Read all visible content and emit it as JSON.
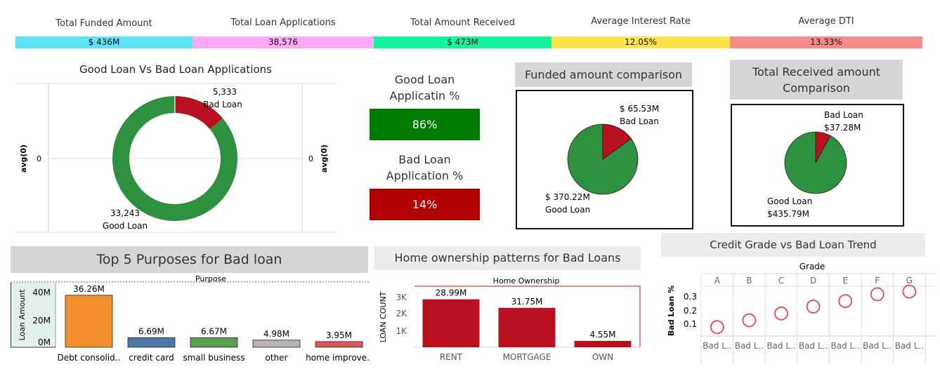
{
  "kpis": [
    {
      "title": "Total Funded Amount",
      "value": "$ 436M",
      "color": "#5ee3f6"
    },
    {
      "title": "Total Loan Applications",
      "value": "38,576",
      "color": "#fdaaf5"
    },
    {
      "title": "Total Amount Received",
      "value": "$ 473M",
      "color": "#12f59e"
    },
    {
      "title": "Average Interest Rate",
      "value": "12.05%",
      "color": "#fde448"
    },
    {
      "title": "Average DTI",
      "value": "13.33%",
      "color": "#f88a8a"
    }
  ],
  "donut": {
    "title": "Good Loan Vs Bad Loan Applications",
    "axis_label": "avg(0)",
    "axis_tick": "0",
    "bad_value": "5,333",
    "bad_label": "Bad Loan",
    "good_value": "33,243",
    "good_label": "Good Loan",
    "good_color": "#2e9140",
    "bad_color": "#b8101f"
  },
  "pct": {
    "good_title_1": "Good Loan",
    "good_title_2": "Applicatin %",
    "good_value": "86%",
    "good_color": "#007a00",
    "bad_title_1": "Bad Loan",
    "bad_title_2": "Application %",
    "bad_value": "14%",
    "bad_color": "#b00000"
  },
  "funded_pie": {
    "title": "Funded amount comparison",
    "bad_value": "$ 65.53M",
    "bad_label": "Bad Loan",
    "good_value": "$ 370.22M",
    "good_label": "Good Loan"
  },
  "received_pie": {
    "title_1": "Total Received amount",
    "title_2": "Comparison",
    "bad_label": "Bad Loan",
    "bad_value": "$37.28M",
    "good_label": "Good Loan",
    "good_value": "$435.79M"
  },
  "purposes": {
    "title": "Top 5 Purposes for Bad loan",
    "column_header": "Purpose",
    "ylabel": "Loan Amount",
    "yticks": [
      "40M",
      "20M",
      "0M"
    ]
  },
  "home": {
    "title": "Home ownership patterns for Bad Loans",
    "column_header": "Home Ownership",
    "ylabel": "LOAN COUNT",
    "yticks": [
      "3K",
      "2K",
      "1K"
    ]
  },
  "grade": {
    "title": "Credit Grade vs Bad Loan Trend",
    "column_header": "Grade",
    "ylabel": "Bad Loan %",
    "yticks": [
      "0.3",
      "0.2",
      "0.1"
    ],
    "row_label": "Bad L.."
  },
  "chart_data": [
    {
      "type": "pie",
      "title": "Good Loan Vs Bad Loan Applications",
      "categories": [
        "Good Loan",
        "Bad Loan"
      ],
      "values": [
        33243,
        5333
      ]
    },
    {
      "type": "pie",
      "title": "Funded amount comparison",
      "categories": [
        "Good Loan",
        "Bad Loan"
      ],
      "values": [
        370.22,
        65.53
      ]
    },
    {
      "type": "pie",
      "title": "Total Received amount Comparison",
      "categories": [
        "Good Loan",
        "Bad Loan"
      ],
      "values": [
        435.79,
        37.28
      ]
    },
    {
      "type": "bar",
      "title": "Top 5 Purposes for Bad loan",
      "xlabel": "Purpose",
      "ylabel": "Loan Amount",
      "categories": [
        "Debt consolid..",
        "credit card",
        "small business",
        "other",
        "home improve.."
      ],
      "values": [
        36.26,
        6.69,
        6.67,
        4.98,
        3.95
      ],
      "labels": [
        "36.26M",
        "6.69M",
        "6.67M",
        "4.98M",
        "3.95M"
      ],
      "colors": [
        "#f28e2b",
        "#4e79a7",
        "#59a14f",
        "#bab0ac",
        "#e15759"
      ],
      "ylim": [
        0,
        45
      ]
    },
    {
      "type": "bar",
      "title": "Home ownership patterns for Bad Loans",
      "xlabel": "Home Ownership",
      "ylabel": "LOAN COUNT",
      "categories": [
        "RENT",
        "MORTGAGE",
        "OWN"
      ],
      "values": [
        2800,
        2300,
        370
      ],
      "labels": [
        "28.99M",
        "31.75M",
        "4.55M"
      ],
      "ylim": [
        0,
        3400
      ]
    },
    {
      "type": "scatter",
      "title": "Credit Grade vs Bad Loan Trend",
      "xlabel": "Grade",
      "ylabel": "Bad Loan %",
      "categories": [
        "A",
        "B",
        "C",
        "D",
        "E",
        "F",
        "G"
      ],
      "values": [
        0.06,
        0.11,
        0.16,
        0.21,
        0.25,
        0.3,
        0.32
      ],
      "ylim": [
        0,
        0.4
      ]
    }
  ]
}
